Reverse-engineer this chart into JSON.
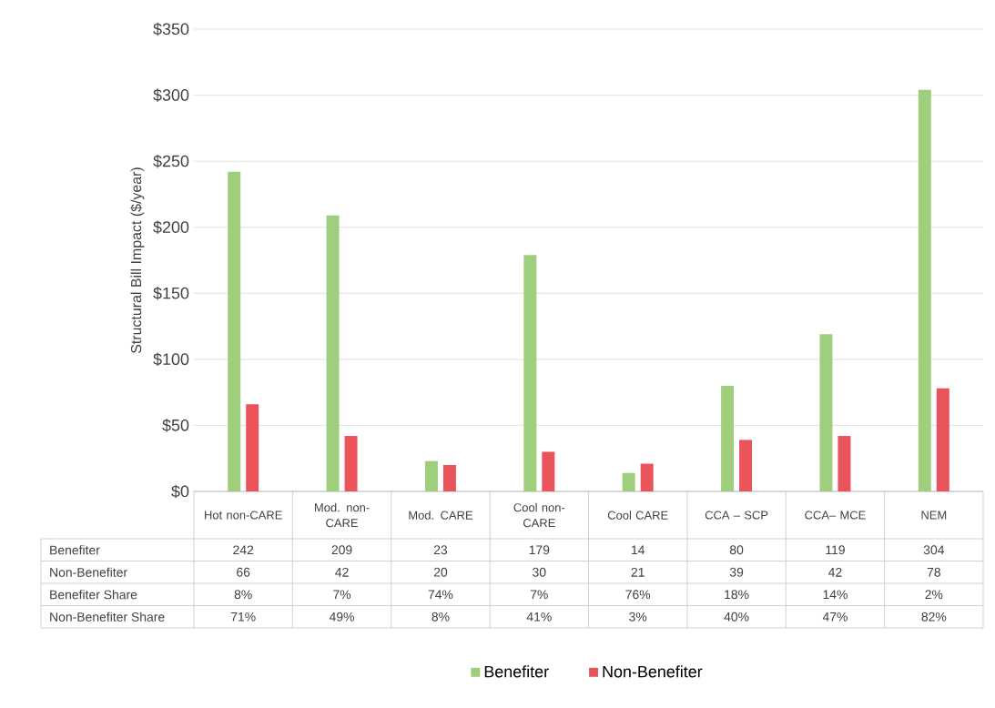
{
  "chart_data": {
    "type": "bar",
    "ylabel": "Structural Bill Impact ($/year)",
    "categories": [
      "Hot non-CARE",
      "Mod. non-CARE",
      "Mod. CARE",
      "Cool non-CARE",
      "Cool CARE",
      "CCA – SCP",
      "CCA– MCE",
      "NEM"
    ],
    "series": [
      {
        "name": "Benefiter",
        "color": "#9fcf7c",
        "values": [
          242,
          209,
          23,
          179,
          14,
          80,
          119,
          304
        ]
      },
      {
        "name": "Non-Benefiter",
        "color": "#e9545a",
        "values": [
          66,
          42,
          20,
          30,
          21,
          39,
          42,
          78
        ]
      }
    ],
    "ylim": [
      0,
      350
    ],
    "yticks": [
      {
        "value": 0,
        "label": "$0"
      },
      {
        "value": 50,
        "label": "$50"
      },
      {
        "value": 100,
        "label": "$100"
      },
      {
        "value": 150,
        "label": "$150"
      },
      {
        "value": 200,
        "label": "$200"
      },
      {
        "value": 250,
        "label": "$250"
      },
      {
        "value": 300,
        "label": "$300"
      },
      {
        "value": 350,
        "label": "$350"
      }
    ],
    "grid": "y",
    "legend": "bottom",
    "data_labels": true,
    "annotations": [
      "Benefiter Share",
      "8%",
      "7%",
      "74%",
      "7%",
      "76%",
      "18%",
      "14%",
      "2%",
      "Non-Benefiter Share",
      "71%",
      "49%",
      "8%",
      "41%",
      "3%",
      "40%",
      "47%",
      "82%"
    ]
  }
}
